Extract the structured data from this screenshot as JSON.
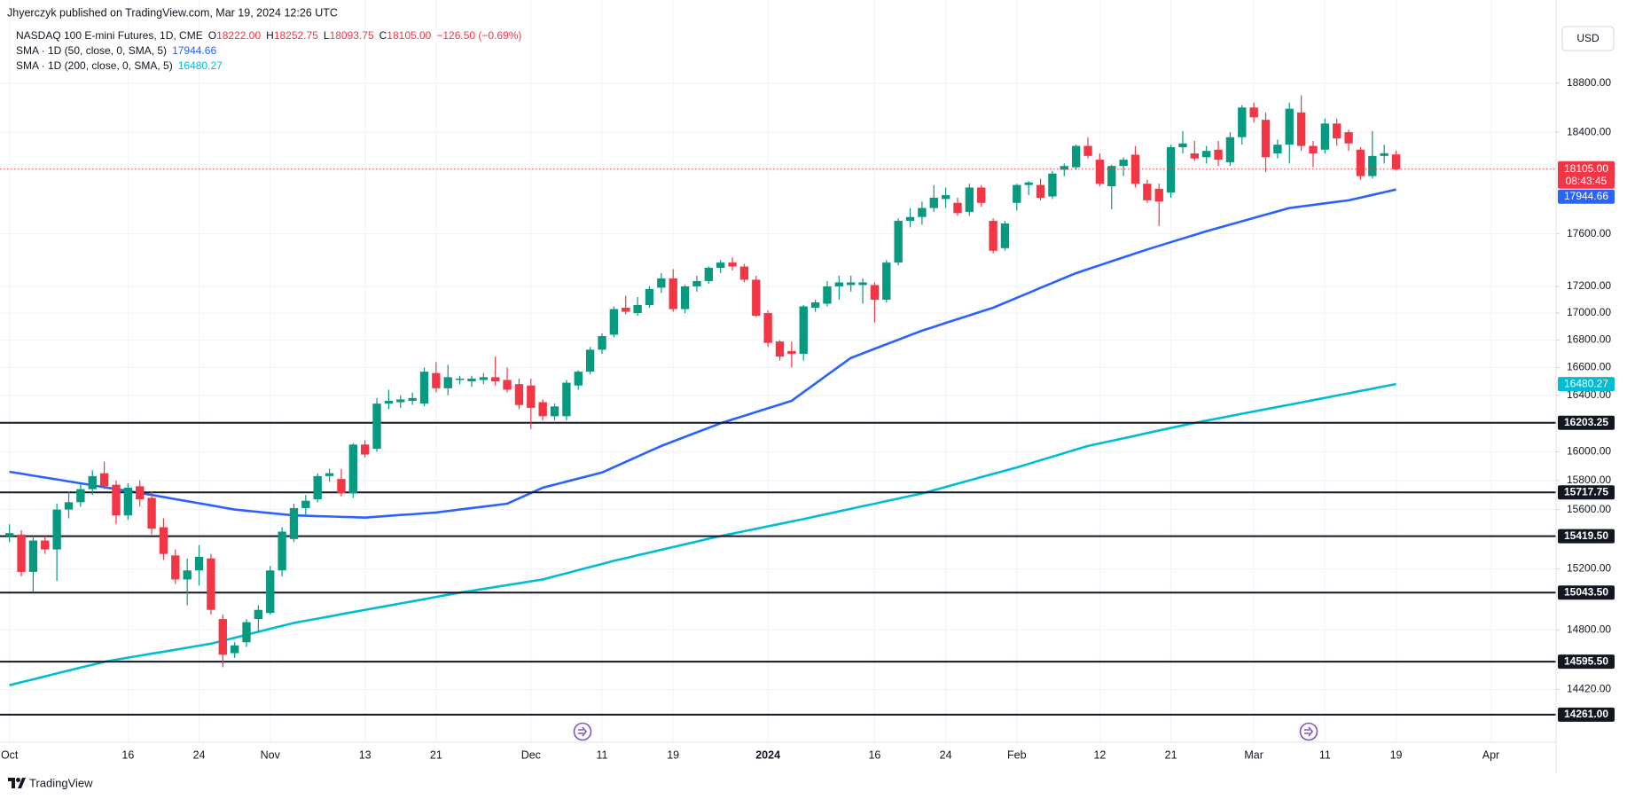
{
  "header": {
    "byline": "Jhyerczyk published on TradingView.com, Mar 19, 2024 12:26 UTC",
    "brand": "TradingView"
  },
  "chart_data": {
    "type": "candlestick",
    "title": "NASDAQ 100 E-mini Futures, 1D, CME",
    "currency": "USD",
    "log_scale": true,
    "grid": true,
    "up_color": "#089981",
    "down_color": "#f23645",
    "level_color": "#131722",
    "categories": [
      "Oct 2",
      "Oct 3",
      "Oct 4",
      "Oct 5",
      "Oct 6",
      "Oct 9",
      "Oct 10",
      "Oct 11",
      "Oct 12",
      "Oct 13",
      "Oct 16",
      "Oct 17",
      "Oct 18",
      "Oct 19",
      "Oct 20",
      "Oct 23",
      "Oct 24",
      "Oct 25",
      "Oct 26",
      "Oct 27",
      "Oct 30",
      "Oct 31",
      "Nov 1",
      "Nov 2",
      "Nov 3",
      "Nov 6",
      "Nov 7",
      "Nov 8",
      "Nov 9",
      "Nov 10",
      "Nov 13",
      "Nov 14",
      "Nov 15",
      "Nov 16",
      "Nov 17",
      "Nov 20",
      "Nov 21",
      "Nov 22",
      "Nov 23",
      "Nov 24",
      "Nov 27",
      "Nov 28",
      "Nov 29",
      "Nov 30",
      "Dec 1",
      "Dec 4",
      "Dec 5",
      "Dec 6",
      "Dec 7",
      "Dec 8",
      "Dec 11",
      "Dec 12",
      "Dec 13",
      "Dec 14",
      "Dec 15",
      "Dec 18",
      "Dec 19",
      "Dec 20",
      "Dec 21",
      "Dec 22",
      "Dec 26",
      "Dec 27",
      "Dec 28",
      "Dec 29",
      "Jan 2",
      "Jan 3",
      "Jan 4",
      "Jan 5",
      "Jan 8",
      "Jan 9",
      "Jan 10",
      "Jan 11",
      "Jan 12",
      "Jan 16",
      "Jan 17",
      "Jan 18",
      "Jan 19",
      "Jan 22",
      "Jan 23",
      "Jan 24",
      "Jan 25",
      "Jan 26",
      "Jan 29",
      "Jan 30",
      "Jan 31",
      "Feb 1",
      "Feb 2",
      "Feb 5",
      "Feb 6",
      "Feb 7",
      "Feb 8",
      "Feb 9",
      "Feb 12",
      "Feb 13",
      "Feb 14",
      "Feb 15",
      "Feb 16",
      "Feb 20",
      "Feb 21",
      "Feb 22",
      "Feb 23",
      "Feb 26",
      "Feb 27",
      "Feb 28",
      "Feb 29",
      "Mar 1",
      "Mar 4",
      "Mar 5",
      "Mar 6",
      "Mar 7",
      "Mar 8",
      "Mar 11",
      "Mar 12",
      "Mar 13",
      "Mar 14",
      "Mar 15",
      "Mar 18",
      "Mar 19",
      "Mar 20",
      "Mar 21",
      "Mar 22",
      "Mar 25",
      "Mar 26",
      "Mar 27",
      "Mar 28",
      "Apr 1",
      "Apr 2",
      "Apr 3",
      "Apr 4",
      "Apr 5",
      "Apr 8"
    ],
    "open": [
      15420,
      15430,
      15180,
      15390,
      15330,
      15600,
      15650,
      15740,
      15850,
      15770,
      15560,
      15760,
      15680,
      15480,
      15290,
      15130,
      15190,
      15270,
      14870,
      14650,
      14720,
      14870,
      14910,
      15190,
      15400,
      15610,
      15670,
      15830,
      15810,
      15710,
      16050,
      16020,
      16340,
      16350,
      16360,
      16340,
      16560,
      16450,
      16510,
      16500,
      16510,
      16530,
      16510,
      16480,
      16470,
      16350,
      16250,
      16250,
      16470,
      16570,
      16730,
      16840,
      17040,
      17000,
      17060,
      17190,
      17260,
      17030,
      17200,
      17240,
      17340,
      17380,
      17350,
      17250,
      17000,
      16790,
      16720,
      16700,
      17040,
      17070,
      17200,
      17210,
      17210,
      17210,
      17100,
      17380,
      17700,
      17730,
      17800,
      17870,
      17840,
      17770,
      17960,
      17700,
      17490,
      17840,
      17980,
      17980,
      17890,
      18100,
      18120,
      18290,
      18180,
      17970,
      18130,
      18220,
      17990,
      17950,
      17920,
      18280,
      18230,
      18200,
      18260,
      18160,
      18360,
      18600,
      18500,
      18230,
      18300,
      18560,
      18290,
      18260,
      18470,
      18400,
      18260,
      18050,
      18210,
      18222,
      null,
      null,
      null,
      null,
      null,
      null,
      null,
      null,
      null,
      null,
      null,
      null,
      null
    ],
    "high": [
      15500,
      15460,
      15420,
      15420,
      15640,
      15720,
      15780,
      15870,
      15930,
      15800,
      15780,
      15800,
      15720,
      15540,
      15330,
      15270,
      15360,
      15300,
      14900,
      14720,
      14870,
      14960,
      15220,
      15480,
      15640,
      15700,
      15850,
      15880,
      15880,
      16060,
      16080,
      16380,
      16440,
      16400,
      16420,
      16600,
      16640,
      16620,
      16540,
      16540,
      16560,
      16680,
      16600,
      16520,
      16520,
      16370,
      16340,
      16510,
      16580,
      16750,
      16850,
      17050,
      17130,
      17120,
      17200,
      17300,
      17330,
      17210,
      17280,
      17350,
      17400,
      17420,
      17370,
      17280,
      17020,
      16800,
      16790,
      17060,
      17100,
      17240,
      17280,
      17280,
      17260,
      17230,
      17400,
      17720,
      17800,
      17850,
      17980,
      17960,
      17880,
      17990,
      17980,
      17720,
      17700,
      17990,
      18010,
      18030,
      18090,
      18150,
      18300,
      18360,
      18230,
      18140,
      18200,
      18290,
      18020,
      17990,
      18300,
      18410,
      18330,
      18290,
      18330,
      18400,
      18620,
      18640,
      18560,
      18340,
      18640,
      18700,
      18330,
      18510,
      18510,
      18420,
      18280,
      18410,
      18300,
      18252.75,
      null,
      null,
      null,
      null,
      null,
      null,
      null,
      null,
      null,
      null,
      null,
      null,
      null
    ],
    "low": [
      15380,
      15150,
      15050,
      15300,
      15120,
      15540,
      15620,
      15700,
      15740,
      15500,
      15530,
      15620,
      15430,
      15260,
      15100,
      14960,
      15090,
      14900,
      14560,
      14620,
      14690,
      14780,
      14900,
      15150,
      15380,
      15560,
      15650,
      15790,
      15690,
      15680,
      15960,
      16000,
      16300,
      16310,
      16330,
      16320,
      16420,
      16400,
      16480,
      16460,
      16480,
      16470,
      16420,
      16300,
      16160,
      16220,
      16220,
      16220,
      16440,
      16550,
      16700,
      16820,
      16990,
      16980,
      17040,
      17150,
      17010,
      17000,
      17160,
      17220,
      17300,
      17320,
      17230,
      16970,
      16750,
      16650,
      16600,
      16650,
      17010,
      17050,
      17100,
      17160,
      17070,
      16930,
      17080,
      17360,
      17650,
      17670,
      17770,
      17800,
      17740,
      17740,
      17810,
      17450,
      17470,
      17780,
      17900,
      17860,
      17870,
      18050,
      18100,
      18190,
      17970,
      17790,
      18050,
      17960,
      17840,
      17660,
      17880,
      18230,
      18170,
      18150,
      18130,
      18130,
      18300,
      18480,
      18080,
      18190,
      18150,
      18250,
      18120,
      18230,
      18290,
      18250,
      18020,
      18030,
      18150,
      18093.75,
      null,
      null,
      null,
      null,
      null,
      null,
      null,
      null,
      null,
      null,
      null,
      null,
      null
    ],
    "close": [
      15440,
      15180,
      15390,
      15330,
      15600,
      15650,
      15740,
      15830,
      15760,
      15560,
      15750,
      15670,
      15470,
      15300,
      15130,
      15190,
      15280,
      14930,
      14640,
      14700,
      14850,
      14930,
      15190,
      15450,
      15610,
      15660,
      15830,
      15850,
      15710,
      16050,
      15980,
      16340,
      16360,
      16370,
      16380,
      16570,
      16450,
      16530,
      16520,
      16520,
      16530,
      16500,
      16440,
      16330,
      16310,
      16250,
      16320,
      16490,
      16570,
      16730,
      16830,
      17030,
      17010,
      17060,
      17180,
      17260,
      17030,
      17200,
      17240,
      17340,
      17380,
      17350,
      17250,
      16980,
      16780,
      16680,
      16700,
      17050,
      17080,
      17200,
      17230,
      17230,
      17230,
      17100,
      17380,
      17700,
      17730,
      17800,
      17880,
      17900,
      17760,
      17960,
      17840,
      17470,
      17680,
      17980,
      18000,
      17880,
      18070,
      18130,
      18290,
      18210,
      17990,
      18130,
      18180,
      17990,
      17860,
      17850,
      18280,
      18310,
      18190,
      18250,
      18180,
      18360,
      18600,
      18520,
      18200,
      18300,
      18590,
      18290,
      18230,
      18470,
      18350,
      18310,
      18050,
      18210,
      18231.5,
      18105,
      null,
      null,
      null,
      null,
      null,
      null,
      null,
      null,
      null,
      null,
      null,
      null,
      null
    ],
    "ohlc_legend": [
      {
        "key": "O",
        "value": "18222.00"
      },
      {
        "key": "H",
        "value": "18252.75"
      },
      {
        "key": "L",
        "value": "18093.75"
      },
      {
        "key": "C",
        "value": "18105.00"
      }
    ],
    "change": "−126.50 (−0.69%)",
    "last_price_label": "18105.00",
    "countdown": "08:43:45",
    "series": [
      {
        "name": "SMA · 1D (50, close, 0, SMA, 5)",
        "color": "#2962ff",
        "values": [
          15860,
          15847,
          15833,
          15820,
          15807,
          15793,
          15780,
          15767,
          15753,
          15740,
          15727,
          15713,
          15700,
          15686,
          15671,
          15657,
          15643,
          15629,
          15614,
          15600,
          15592,
          15584,
          15576,
          15568,
          15560,
          15558,
          15555,
          15553,
          15550,
          15548,
          15545,
          15551,
          15557,
          15563,
          15568,
          15574,
          15580,
          15590,
          15600,
          15610,
          15620,
          15630,
          15640,
          15677,
          15713,
          15750,
          15771,
          15792,
          15813,
          15834,
          15855,
          15892,
          15929,
          15966,
          16003,
          16040,
          16072,
          16104,
          16136,
          16168,
          16200,
          16227,
          16253,
          16280,
          16307,
          16333,
          16360,
          16422,
          16484,
          16546,
          16608,
          16670,
          16703,
          16737,
          16770,
          16803,
          16837,
          16870,
          16898,
          16927,
          16955,
          16983,
          17012,
          17040,
          17077,
          17114,
          17151,
          17189,
          17226,
          17263,
          17300,
          17330,
          17360,
          17390,
          17420,
          17450,
          17480,
          17508,
          17536,
          17564,
          17592,
          17620,
          17646,
          17671,
          17697,
          17723,
          17749,
          17774,
          17800,
          17812,
          17824,
          17836,
          17848,
          17860,
          17881,
          17902,
          17923,
          17944.66,
          null,
          null,
          null,
          null,
          null,
          null,
          null,
          null,
          null,
          null,
          null,
          null,
          null
        ]
      },
      {
        "name": "SMA · 1D (200, close, 0, SMA, 5)",
        "color": "#00bcd4",
        "values": [
          14446,
          14465,
          14483,
          14502,
          14521,
          14539,
          14558,
          14576,
          14595,
          14608,
          14621,
          14634,
          14647,
          14659,
          14672,
          14685,
          14698,
          14711,
          14730,
          14749,
          14768,
          14788,
          14807,
          14826,
          14845,
          14859,
          14873,
          14887,
          14902,
          14916,
          14930,
          14944,
          14958,
          14972,
          14986,
          15000,
          15015,
          15029,
          15043,
          15055,
          15068,
          15080,
          15093,
          15105,
          15118,
          15130,
          15151,
          15171,
          15192,
          15213,
          15233,
          15254,
          15272,
          15291,
          15309,
          15328,
          15346,
          15365,
          15383,
          15402,
          15420,
          15436,
          15453,
          15469,
          15486,
          15502,
          15519,
          15535,
          15553,
          15570,
          15588,
          15605,
          15623,
          15640,
          15658,
          15675,
          15693,
          15710,
          15733,
          15755,
          15778,
          15800,
          15823,
          15845,
          15868,
          15890,
          15915,
          15940,
          15965,
          15990,
          16015,
          16040,
          16058,
          16076,
          16094,
          16112,
          16131,
          16149,
          16167,
          16185,
          16203,
          16219,
          16235,
          16251,
          16268,
          16284,
          16300,
          16316,
          16332,
          16348,
          16365,
          16381,
          16398,
          16414,
          16431,
          16447,
          16464,
          16480.27,
          null,
          null,
          null,
          null,
          null,
          null,
          null,
          null,
          null,
          null,
          null,
          null,
          null
        ]
      }
    ],
    "levels": [
      16203.25,
      15717.75,
      {
        "value": 15419.5,
        "label": "15419.50"
      },
      {
        "value": 15043.5,
        "label": "15043.50"
      },
      {
        "value": 14595.5,
        "label": "14595.50"
      },
      {
        "value": 14261,
        "label": "14261.00"
      }
    ],
    "ylim": [
      14090,
      19300
    ],
    "yticks": [
      {
        "value": 18800,
        "label": "18800.00"
      },
      {
        "value": 18400,
        "label": "18400.00"
      },
      {
        "value": 17600,
        "label": "17600.00"
      },
      {
        "value": 17200,
        "label": "17200.00"
      },
      {
        "value": 17000,
        "label": "17000.00"
      },
      {
        "value": 16800,
        "label": "16800.00"
      },
      {
        "value": 16600,
        "label": "16600.00"
      },
      {
        "value": 16400,
        "label": "16400.00"
      },
      {
        "value": 16000,
        "label": "16000.00"
      },
      {
        "value": 15800,
        "label": "15800.00"
      },
      {
        "value": 15600,
        "label": "15600.00"
      },
      {
        "value": 15200,
        "label": "15200.00"
      },
      {
        "value": 14800,
        "label": "14800.00"
      },
      {
        "value": 14420,
        "label": "14420.00"
      }
    ],
    "xticks": [
      {
        "value": "Oct 2",
        "label": "Oct"
      },
      {
        "value": "Oct 16",
        "label": "16"
      },
      {
        "value": "Oct 24",
        "label": "24"
      },
      {
        "value": "Nov 1",
        "label": "Nov"
      },
      {
        "value": "Nov 13",
        "label": "13"
      },
      {
        "value": "Nov 21",
        "label": "21"
      },
      {
        "value": "Dec 1",
        "label": "Dec"
      },
      {
        "value": "Dec 11",
        "label": "11"
      },
      {
        "value": "Dec 19",
        "label": "19"
      },
      {
        "value": "Jan 2",
        "label": "2024"
      },
      {
        "value": "Jan 16",
        "label": "16"
      },
      {
        "value": "Jan 24",
        "label": "24"
      },
      {
        "value": "Feb 1",
        "label": "Feb"
      },
      {
        "value": "Feb 12",
        "label": "12"
      },
      {
        "value": "Feb 21",
        "label": "21"
      },
      {
        "value": "Mar 1",
        "label": "Mar"
      },
      {
        "value": "Mar 11",
        "label": "11"
      },
      {
        "value": "Mar 19",
        "label": "19"
      },
      {
        "value": "Apr 1",
        "label": "Apr"
      }
    ]
  }
}
